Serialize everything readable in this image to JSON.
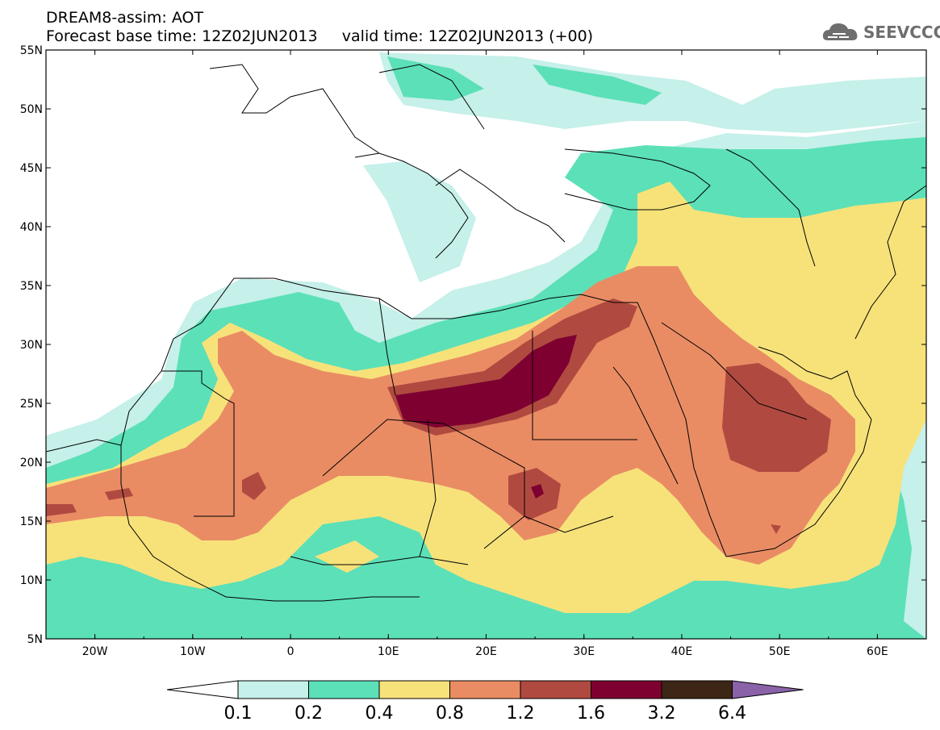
{
  "header": {
    "line1": "DREAM8-assim: AOT",
    "line2": "Forecast base time: 12Z02JUN2013     valid time: 12Z02JUN2013 (+00)"
  },
  "logo": {
    "text": "SEEVCCC",
    "icon": "cloud-icon"
  },
  "map": {
    "variable": "AOT",
    "lon_range": [
      -25,
      65
    ],
    "lat_range": [
      5,
      55
    ],
    "lat_labels": [
      "55N",
      "50N",
      "45N",
      "40N",
      "35N",
      "30N",
      "25N",
      "20N",
      "15N",
      "10N",
      "5N"
    ],
    "lon_labels": [
      "20W",
      "10W",
      "0",
      "10E",
      "20E",
      "30E",
      "40E",
      "50E",
      "60E"
    ]
  },
  "colorbar": {
    "labels": [
      "0.1",
      "0.2",
      "0.4",
      "0.8",
      "1.2",
      "1.6",
      "3.2",
      "6.4"
    ],
    "colors": [
      "#ffffff",
      "#c6f0ea",
      "#5ce0b8",
      "#f7e27a",
      "#e98c64",
      "#b04a40",
      "#7e0030",
      "#3d2616",
      "#8a62a8"
    ]
  }
}
